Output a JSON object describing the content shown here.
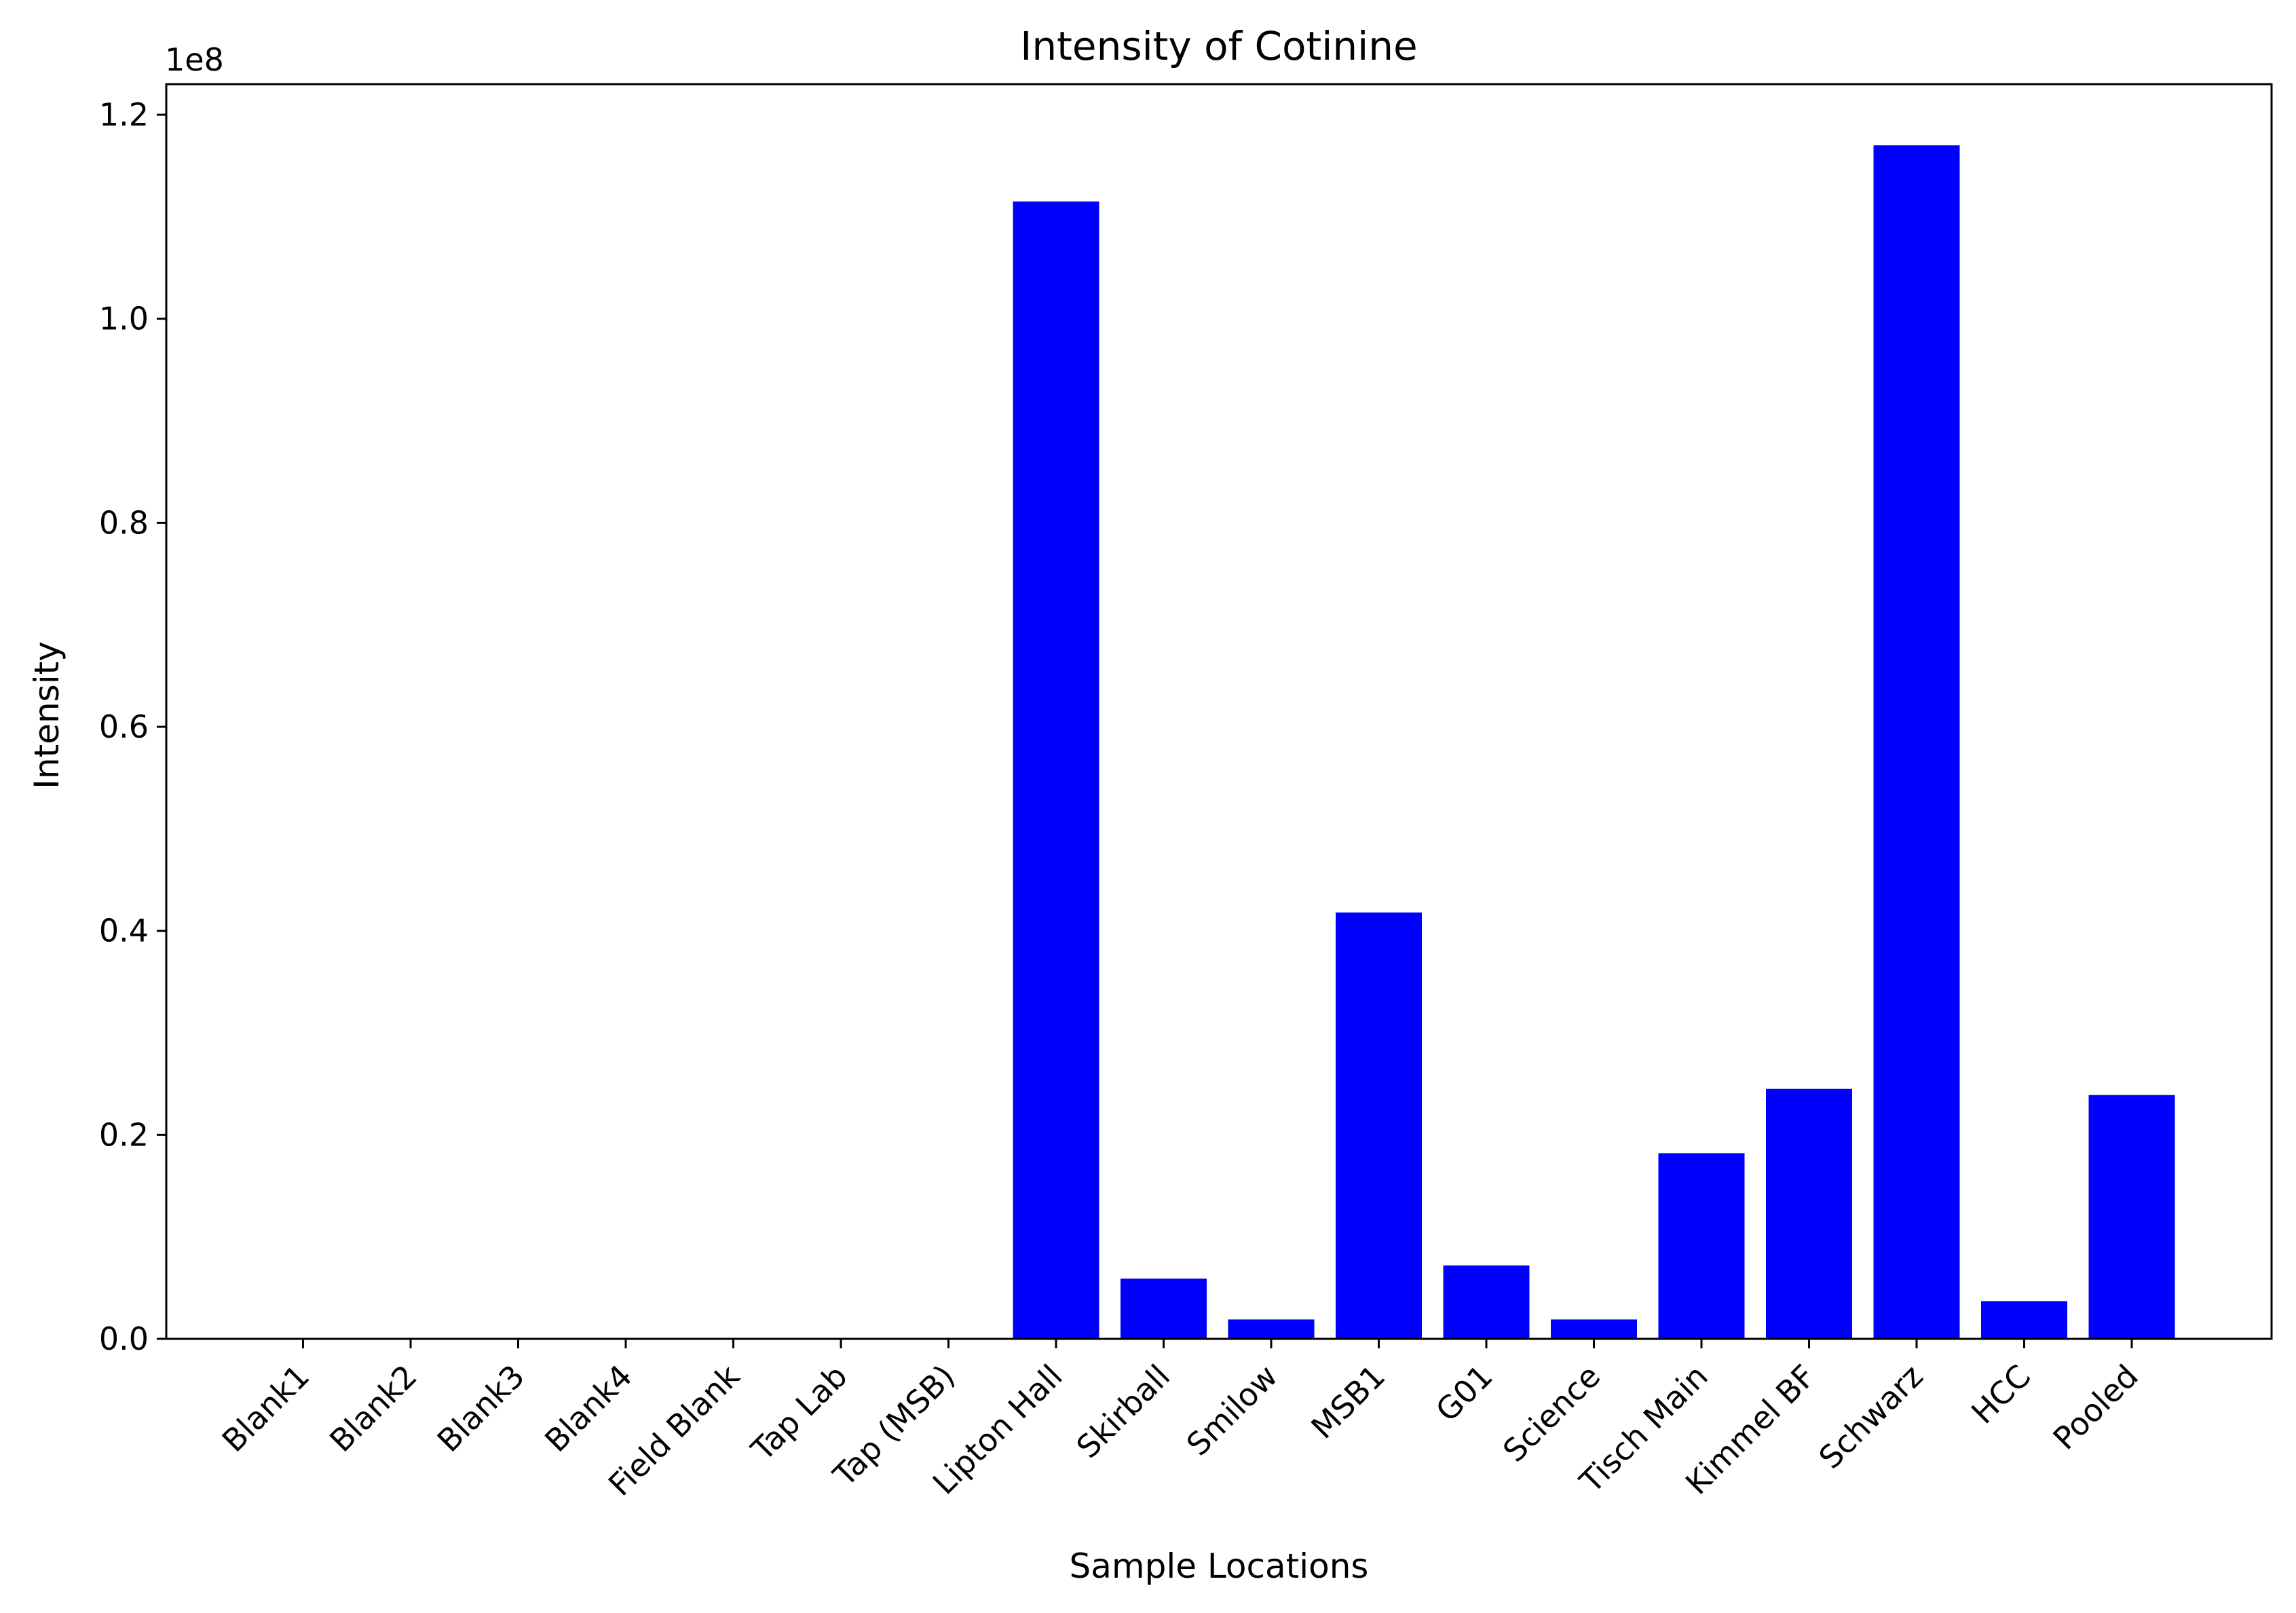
{
  "chart_data": {
    "type": "bar",
    "title": "Intensity of Cotinine",
    "xlabel": "Sample Locations",
    "ylabel": "Intensity",
    "y_offset_label": "1e8",
    "ylim": [
      0,
      123000000
    ],
    "y_ticks": [
      0,
      20000000,
      40000000,
      60000000,
      80000000,
      100000000,
      120000000
    ],
    "y_tick_labels": [
      "0.0",
      "0.2",
      "0.4",
      "0.6",
      "0.8",
      "1.0",
      "1.2"
    ],
    "categories": [
      "Blank1",
      "Blank2",
      "Blank3",
      "Blank4",
      "Field Blank",
      "Tap Lab",
      "Tap (MSB)",
      "Lipton Hall",
      "Skirball",
      "Smilow",
      "MSB1",
      "G01",
      "Science",
      "Tisch Main",
      "Kimmel BF",
      "Schwarz",
      "HCC",
      "Pooled"
    ],
    "values": [
      0,
      0,
      0,
      0,
      0,
      0,
      0,
      111500000,
      5900000,
      1900000,
      41800000,
      7200000,
      1900000,
      18200000,
      24500000,
      117000000,
      3700000,
      23900000
    ],
    "bar_color": "#0000ff",
    "grid": false,
    "legend": "none"
  }
}
